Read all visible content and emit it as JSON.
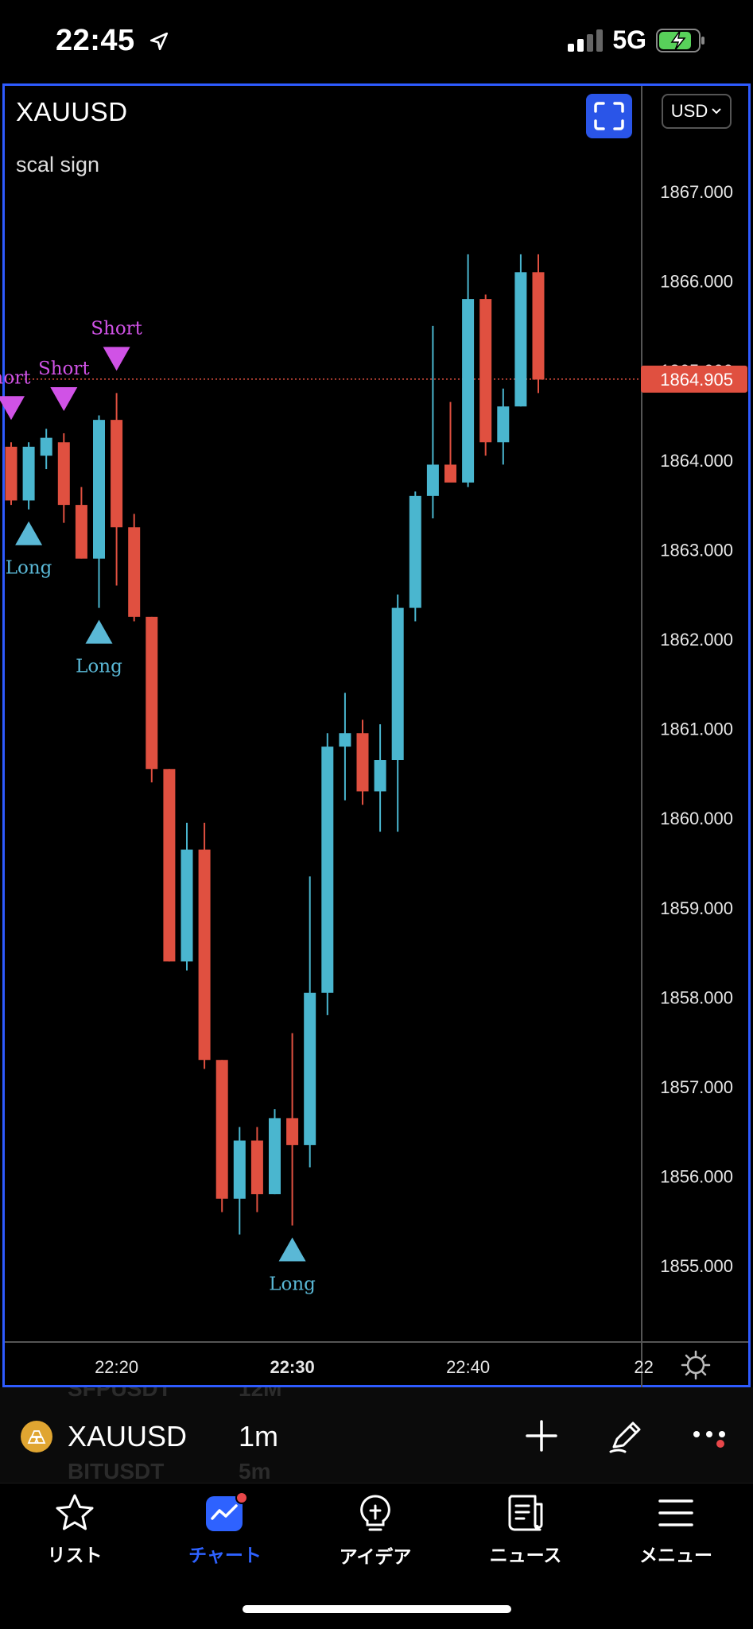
{
  "status": {
    "time": "22:45",
    "network": "5G"
  },
  "chart": {
    "symbol": "XAUUSD",
    "indicator": "scal sign",
    "currency": "USD",
    "last_price_label": "1864.905"
  },
  "chart_data": {
    "type": "candlestick",
    "title": "XAUUSD",
    "interval": "1m",
    "y_ticks": [
      "1867.000",
      "1866.000",
      "1865.000",
      "1864.000",
      "1863.000",
      "1862.000",
      "1861.000",
      "1860.000",
      "1859.000",
      "1858.000",
      "1857.000",
      "1856.000",
      "1855.000"
    ],
    "ylim": [
      1854.2,
      1867.75
    ],
    "x_ticks": [
      {
        "label": "22:20",
        "index": 6
      },
      {
        "label": "22:30",
        "index": 16
      },
      {
        "label": "22:40",
        "index": 26
      },
      {
        "label": "22",
        "index": 36
      }
    ],
    "current_price": 1864.905,
    "candles": [
      {
        "o": 1864.15,
        "h": 1864.2,
        "l": 1863.5,
        "c": 1863.55
      },
      {
        "o": 1863.55,
        "h": 1864.2,
        "l": 1863.45,
        "c": 1864.15
      },
      {
        "o": 1864.05,
        "h": 1864.35,
        "l": 1863.9,
        "c": 1864.25
      },
      {
        "o": 1864.2,
        "h": 1864.3,
        "l": 1863.3,
        "c": 1863.5
      },
      {
        "o": 1863.5,
        "h": 1863.7,
        "l": 1862.9,
        "c": 1862.9
      },
      {
        "o": 1862.9,
        "h": 1864.5,
        "l": 1862.35,
        "c": 1864.45
      },
      {
        "o": 1864.45,
        "h": 1864.75,
        "l": 1862.6,
        "c": 1863.25
      },
      {
        "o": 1863.25,
        "h": 1863.4,
        "l": 1862.2,
        "c": 1862.25
      },
      {
        "o": 1862.25,
        "h": 1862.25,
        "l": 1860.4,
        "c": 1860.55
      },
      {
        "o": 1860.55,
        "h": 1860.55,
        "l": 1858.4,
        "c": 1858.4
      },
      {
        "o": 1858.4,
        "h": 1859.95,
        "l": 1858.3,
        "c": 1859.65
      },
      {
        "o": 1859.65,
        "h": 1859.95,
        "l": 1857.2,
        "c": 1857.3
      },
      {
        "o": 1857.3,
        "h": 1857.3,
        "l": 1855.6,
        "c": 1855.75
      },
      {
        "o": 1855.75,
        "h": 1856.55,
        "l": 1855.35,
        "c": 1856.4
      },
      {
        "o": 1856.4,
        "h": 1856.55,
        "l": 1855.6,
        "c": 1855.8
      },
      {
        "o": 1855.8,
        "h": 1856.75,
        "l": 1855.8,
        "c": 1856.65
      },
      {
        "o": 1856.65,
        "h": 1857.6,
        "l": 1855.45,
        "c": 1856.35
      },
      {
        "o": 1856.35,
        "h": 1859.35,
        "l": 1856.1,
        "c": 1858.05
      },
      {
        "o": 1858.05,
        "h": 1860.95,
        "l": 1857.8,
        "c": 1860.8
      },
      {
        "o": 1860.8,
        "h": 1861.4,
        "l": 1860.2,
        "c": 1860.95
      },
      {
        "o": 1860.95,
        "h": 1861.1,
        "l": 1860.15,
        "c": 1860.3
      },
      {
        "o": 1860.3,
        "h": 1861.05,
        "l": 1859.85,
        "c": 1860.65
      },
      {
        "o": 1860.65,
        "h": 1862.5,
        "l": 1859.85,
        "c": 1862.35
      },
      {
        "o": 1862.35,
        "h": 1863.65,
        "l": 1862.2,
        "c": 1863.6
      },
      {
        "o": 1863.6,
        "h": 1865.5,
        "l": 1863.35,
        "c": 1863.95
      },
      {
        "o": 1863.95,
        "h": 1864.65,
        "l": 1863.8,
        "c": 1863.75
      },
      {
        "o": 1863.75,
        "h": 1866.3,
        "l": 1863.7,
        "c": 1865.8
      },
      {
        "o": 1865.8,
        "h": 1865.85,
        "l": 1864.05,
        "c": 1864.2
      },
      {
        "o": 1864.2,
        "h": 1864.8,
        "l": 1863.95,
        "c": 1864.6
      },
      {
        "o": 1864.6,
        "h": 1866.3,
        "l": 1864.6,
        "c": 1866.1
      },
      {
        "o": 1866.1,
        "h": 1866.3,
        "l": 1864.75,
        "c": 1864.9
      }
    ],
    "signals": [
      {
        "type": "short",
        "label": "hort",
        "index": 0
      },
      {
        "type": "short",
        "label": "Short",
        "index": 3
      },
      {
        "type": "short",
        "label": "Short",
        "index": 6
      },
      {
        "type": "long",
        "label": "Long",
        "index": 1
      },
      {
        "type": "long",
        "label": "Long",
        "index": 5
      },
      {
        "type": "long",
        "label": "Long",
        "index": 16
      }
    ],
    "colors": {
      "up": "#4ab6cf",
      "down": "#e05040",
      "short": "#d052e6",
      "long": "#5ab8d6",
      "price_line": "#e05040"
    }
  },
  "toolbar": {
    "symbol": "XAUUSD",
    "interval": "1m",
    "ghost_above": [
      "SFPUSDT",
      "12M"
    ],
    "ghost_below": [
      "BITUSDT",
      "5m"
    ]
  },
  "nav": {
    "items": [
      {
        "label": "リスト",
        "icon": "star-icon"
      },
      {
        "label": "チャート",
        "icon": "chart-icon"
      },
      {
        "label": "アイデア",
        "icon": "lightbulb-icon"
      },
      {
        "label": "ニュース",
        "icon": "news-icon"
      },
      {
        "label": "メニュー",
        "icon": "menu-icon"
      }
    ]
  }
}
